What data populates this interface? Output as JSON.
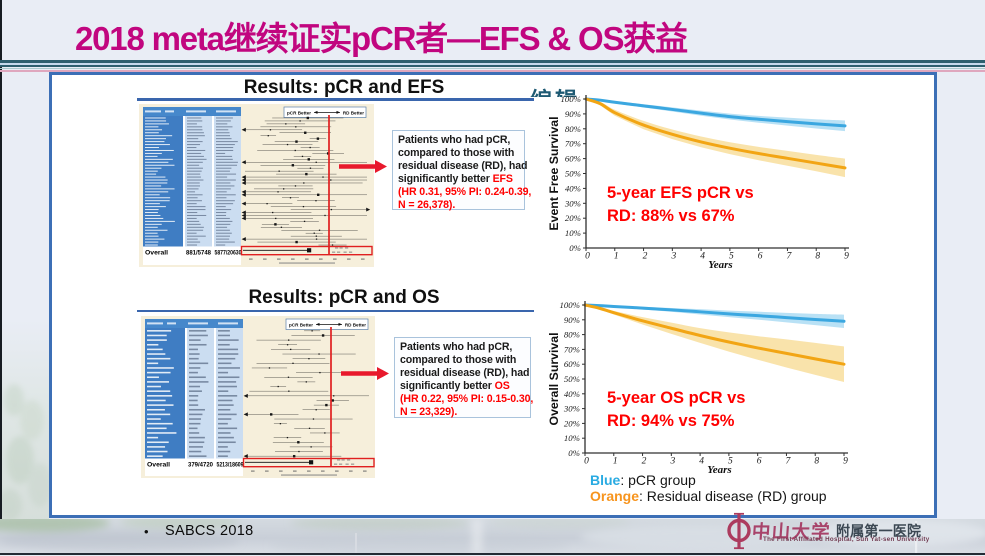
{
  "slide": {
    "title": "2018 meta继续证实pCR者—EFS & OS获益",
    "clipped_placeholder_text": "编辑",
    "footer_bullet": "•",
    "footer_source": "SABCS 2018"
  },
  "colors": {
    "title": "#C1067F",
    "box_border": "#3C6FB6",
    "heading_underline": "#3A66AD",
    "red_accent": "#FF0000",
    "forest_red_line": "#E02020",
    "background": "#E9EDF5"
  },
  "panels": {
    "efs": {
      "heading": "Results: pCR and EFS",
      "forest": {
        "legend_left": "pCR Better",
        "legend_right": "RD Better",
        "overall_label": "Overall",
        "overall_pcr": "881/5748",
        "overall_rd": "5877/20630",
        "n_rows": 44,
        "seed": 11
      },
      "annotation_lines": [
        {
          "black": "Patients who had pCR,"
        },
        {
          "black": "compared to those with"
        },
        {
          "black": "residual disease (RD), had"
        },
        {
          "black": "significantly better ",
          "red": "EFS"
        },
        {
          "red": "(HR 0.31, 95% PI: 0.24-0.39,"
        },
        {
          "red": "N = 26,378)."
        }
      ]
    },
    "os": {
      "heading": "Results: pCR and OS",
      "forest": {
        "legend_left": "pCR Better",
        "legend_right": "RD Better",
        "overall_label": "Overall",
        "overall_pcr": "379/4720",
        "overall_rd": "5213/18609",
        "n_rows": 28,
        "seed": 5
      },
      "annotation_lines": [
        {
          "black": "Patients who had pCR,"
        },
        {
          "black": "compared to those with"
        },
        {
          "black": "residual disease (RD), had"
        },
        {
          "black": "significantly better ",
          "red": "OS"
        },
        {
          "red": "(HR 0.22, 95% PI: 0.15-0.30,"
        },
        {
          "red": "N = 23,329)."
        }
      ]
    }
  },
  "chart_data": [
    {
      "id": "efs",
      "type": "line",
      "title": "",
      "ylabel": "Event Free Survival",
      "xlabel": "Years",
      "xlim": [
        0,
        9
      ],
      "ylim": [
        0,
        100
      ],
      "x": [
        0,
        0.5,
        1,
        2,
        3,
        4,
        5,
        6,
        7,
        8,
        9
      ],
      "x_tick_labels": [
        "0",
        "1",
        "2",
        "3",
        "4",
        "5",
        "6",
        "7",
        "8",
        "9"
      ],
      "y_tick_labels": [
        "0%",
        "10%",
        "20%",
        "30%",
        "40%",
        "50%",
        "60%",
        "70%",
        "80%",
        "90%",
        "100%"
      ],
      "series": [
        {
          "name": "pCR",
          "color": "#3BA7E0",
          "band_color": "#A8DAF2",
          "values": [
            100,
            99.2,
            97.8,
            95.4,
            93.0,
            90.5,
            88.2,
            86.4,
            84.8,
            83.3,
            82
          ],
          "band_halfwidth": [
            0.2,
            0.4,
            0.8,
            1.1,
            1.4,
            1.7,
            2.0,
            2.3,
            2.7,
            3.1,
            3.6
          ]
        },
        {
          "name": "Residual disease (RD)",
          "color": "#F2A514",
          "band_color": "#F7DC96",
          "values": [
            100,
            96.8,
            90.8,
            82.5,
            76.3,
            71.2,
            67,
            63.4,
            60.2,
            57,
            53.8
          ],
          "band_halfwidth": [
            0.2,
            1.2,
            2.0,
            2.8,
            3.2,
            3.6,
            4.0,
            4.5,
            5.0,
            5.5,
            6.2
          ]
        }
      ],
      "annotation_line1": "5-year EFS pCR vs",
      "annotation_line2": "RD: 88% vs 67%"
    },
    {
      "id": "os",
      "type": "line",
      "title": "",
      "ylabel": "Overall Survival",
      "xlabel": "Years",
      "xlim": [
        0,
        9
      ],
      "ylim": [
        0,
        100
      ],
      "x": [
        0,
        0.5,
        1,
        2,
        3,
        4,
        5,
        6,
        7,
        8,
        9
      ],
      "x_tick_labels": [
        "0",
        "1",
        "2",
        "3",
        "4",
        "5",
        "6",
        "7",
        "8",
        "9"
      ],
      "y_tick_labels": [
        "0%",
        "10%",
        "20%",
        "30%",
        "40%",
        "50%",
        "60%",
        "70%",
        "80%",
        "90%",
        "100%"
      ],
      "series": [
        {
          "name": "pCR",
          "color": "#3BA7E0",
          "band_color": "#A8DAF2",
          "values": [
            100,
            99.6,
            99,
            97.9,
            96.7,
            95.4,
            94,
            92.8,
            91.5,
            90.2,
            89
          ],
          "band_halfwidth": [
            0.2,
            0.3,
            0.5,
            0.9,
            1.3,
            1.8,
            2.2,
            2.7,
            3.2,
            3.8,
            4.5
          ]
        },
        {
          "name": "Residual disease (RD)",
          "color": "#F2A514",
          "band_color": "#F7DC96",
          "values": [
            100,
            97.8,
            94.8,
            89.3,
            84.3,
            79.4,
            75,
            71,
            67.3,
            63.6,
            60
          ],
          "band_halfwidth": [
            0.2,
            0.8,
            1.2,
            2.5,
            3.8,
            5.0,
            6.5,
            8.0,
            9.5,
            10.8,
            12.0
          ]
        }
      ],
      "annotation_line1": "5-year OS pCR vs",
      "annotation_line2": "RD: 94% vs 75%"
    }
  ],
  "legend": {
    "items": [
      {
        "label": "Blue",
        "color": "#29ABE2",
        "text": ": pCR group"
      },
      {
        "label": "Orange",
        "color": "#F7941D",
        "text": ": Residual disease (RD) group"
      }
    ]
  },
  "logo": {
    "zh_university": "中山大学",
    "zh_hospital": "附属第一医院",
    "en": "The First Affiliated Hospital, Sun Yat-sen University"
  }
}
